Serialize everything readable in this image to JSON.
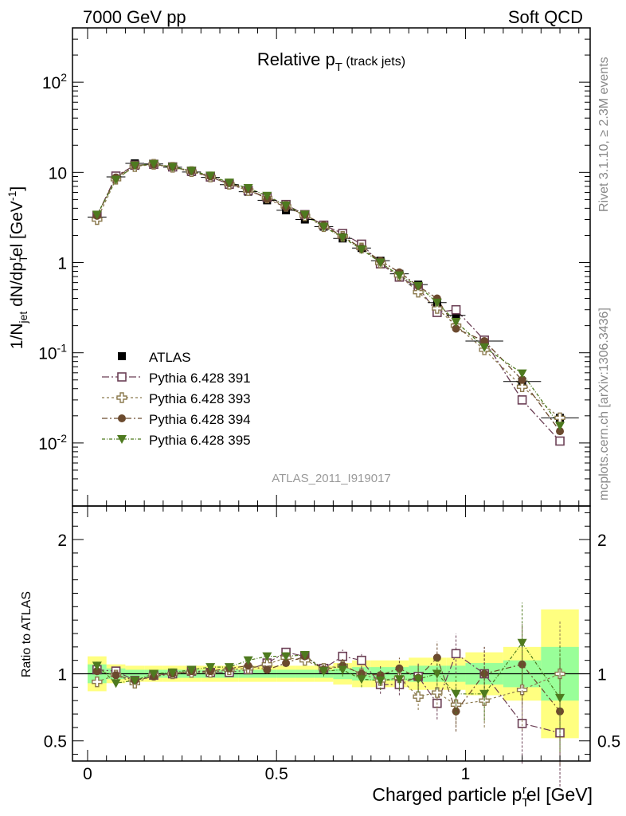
{
  "header": {
    "left": "7000 GeV pp",
    "right": "Soft QCD"
  },
  "side_labels": {
    "rivet": "Rivet 3.1.10, ≥ 2.3M events",
    "mcplots": "mcplots.cern.ch [arXiv:1306.3436]"
  },
  "watermark": "ATLAS_2011_I919017",
  "colors": {
    "atlas": "#000000",
    "p391": "#6b3f55",
    "p393": "#8c7a4f",
    "p394": "#6b4a2e",
    "p395": "#4e7a1f",
    "band_green": "#99ff99",
    "band_yellow": "#ffff80"
  },
  "chart_data": [
    {
      "type": "scatter",
      "title_main": "Relative p",
      "title_sub": "T",
      "title_suffix": " (track jets)",
      "ylabel_parts": [
        "1/N",
        "jet",
        " dN/dp",
        "T",
        "r",
        "el [GeV",
        "-1",
        "]"
      ],
      "yscale": "log",
      "ylim": [
        0.002,
        400
      ],
      "xlim": [
        -0.04,
        1.33
      ],
      "yticks": [
        {
          "value": 0.01,
          "base": "10",
          "exp": "-2"
        },
        {
          "value": 0.1,
          "base": "10",
          "exp": "-1"
        },
        {
          "value": 1,
          "base": "1",
          "exp": ""
        },
        {
          "value": 10,
          "base": "10",
          "exp": ""
        },
        {
          "value": 100,
          "base": "10",
          "exp": "2"
        }
      ],
      "x": [
        0.025,
        0.075,
        0.125,
        0.175,
        0.225,
        0.275,
        0.325,
        0.375,
        0.425,
        0.475,
        0.525,
        0.575,
        0.625,
        0.675,
        0.725,
        0.775,
        0.825,
        0.875,
        0.925,
        0.975,
        1.05,
        1.15,
        1.25
      ],
      "xerr": [
        0.025,
        0.025,
        0.025,
        0.025,
        0.025,
        0.025,
        0.025,
        0.025,
        0.025,
        0.025,
        0.025,
        0.025,
        0.025,
        0.025,
        0.025,
        0.025,
        0.025,
        0.025,
        0.025,
        0.025,
        0.05,
        0.05,
        0.05
      ],
      "series": [
        {
          "name": "ATLAS",
          "key": "atlas",
          "marker": "filled-square",
          "line": false,
          "values": [
            3.2,
            8.9,
            12.6,
            12.4,
            11.4,
            10.1,
            8.8,
            7.3,
            6.1,
            4.9,
            3.8,
            3.0,
            2.5,
            1.85,
            1.45,
            1.05,
            0.75,
            0.57,
            0.36,
            0.26,
            0.135,
            0.048,
            0.019
          ]
        },
        {
          "name": "Pythia 6.428 391",
          "key": "p391",
          "marker": "open-square",
          "line": true,
          "values": [
            3.3,
            9.1,
            12.0,
            12.3,
            11.5,
            10.3,
            8.9,
            7.4,
            6.3,
            5.3,
            4.4,
            3.4,
            2.6,
            2.1,
            1.6,
            0.97,
            0.69,
            0.53,
            0.28,
            0.3,
            0.138,
            0.03,
            0.0105
          ]
        },
        {
          "name": "Pythia 6.428 393",
          "key": "p393",
          "marker": "open-cross",
          "line": true,
          "values": [
            3.0,
            8.4,
            11.6,
            12.3,
            11.4,
            10.2,
            8.9,
            7.4,
            6.3,
            5.2,
            4.2,
            3.3,
            2.5,
            1.95,
            1.45,
            0.99,
            0.72,
            0.47,
            0.31,
            0.2,
            0.108,
            0.042,
            0.019
          ]
        },
        {
          "name": "Pythia 6.428 394",
          "key": "p394",
          "marker": "filled-circle",
          "line": true,
          "values": [
            3.3,
            8.8,
            12.0,
            12.2,
            11.5,
            10.3,
            9.0,
            7.6,
            6.5,
            5.1,
            4.1,
            3.4,
            2.6,
            1.95,
            1.45,
            1.05,
            0.78,
            0.55,
            0.4,
            0.185,
            0.135,
            0.05,
            0.0135
          ]
        },
        {
          "name": "Pythia 6.428 395",
          "key": "p395",
          "marker": "filled-triangle-down",
          "line": true,
          "values": [
            3.4,
            8.3,
            11.9,
            12.4,
            11.5,
            10.4,
            9.2,
            7.7,
            6.7,
            5.5,
            4.3,
            3.4,
            2.5,
            1.9,
            1.4,
            1.0,
            0.72,
            0.55,
            0.36,
            0.22,
            0.115,
            0.059,
            0.0155
          ]
        }
      ]
    },
    {
      "type": "scatter",
      "ylabel": "Ratio to ATLAS",
      "xlabel_parts": [
        "Charged particle p",
        "T",
        "r",
        "el [GeV]"
      ],
      "ylim": [
        0.35,
        2.25
      ],
      "xlim": [
        -0.04,
        1.33
      ],
      "yticks": [
        0.5,
        1,
        2
      ],
      "xticks": [
        {
          "value": 0,
          "label": "0"
        },
        {
          "value": 0.5,
          "label": "0.5"
        },
        {
          "value": 1,
          "label": "1"
        }
      ],
      "band": {
        "x_low": [
          0.0,
          0.05,
          0.1,
          0.15,
          0.2,
          0.25,
          0.3,
          0.35,
          0.4,
          0.45,
          0.5,
          0.55,
          0.6,
          0.65,
          0.7,
          0.75,
          0.8,
          0.85,
          0.9,
          0.95,
          1.0,
          1.1,
          1.2
        ],
        "x_high": [
          0.05,
          0.1,
          0.15,
          0.2,
          0.25,
          0.3,
          0.35,
          0.4,
          0.45,
          0.5,
          0.55,
          0.6,
          0.65,
          0.7,
          0.75,
          0.8,
          0.85,
          0.9,
          0.95,
          1.0,
          1.1,
          1.2,
          1.3
        ],
        "green": [
          0.07,
          0.04,
          0.03,
          0.03,
          0.03,
          0.03,
          0.03,
          0.03,
          0.03,
          0.03,
          0.03,
          0.03,
          0.03,
          0.04,
          0.05,
          0.05,
          0.05,
          0.06,
          0.06,
          0.06,
          0.08,
          0.1,
          0.2
        ],
        "yellow": [
          0.13,
          0.07,
          0.06,
          0.06,
          0.06,
          0.06,
          0.06,
          0.06,
          0.06,
          0.06,
          0.06,
          0.06,
          0.06,
          0.08,
          0.1,
          0.1,
          0.1,
          0.12,
          0.12,
          0.12,
          0.16,
          0.2,
          0.48
        ]
      },
      "series": [
        {
          "name": "Pythia 6.428 391",
          "key": "p391",
          "marker": "open-square",
          "values": [
            1.03,
            1.02,
            0.95,
            0.99,
            1.0,
            1.02,
            1.01,
            1.01,
            1.03,
            1.08,
            1.16,
            1.13,
            1.04,
            1.13,
            1.1,
            0.92,
            0.92,
            0.98,
            0.78,
            1.15,
            1.0,
            0.63,
            0.56
          ],
          "err": [
            0.03,
            0.02,
            0.02,
            0.02,
            0.02,
            0.02,
            0.02,
            0.02,
            0.03,
            0.03,
            0.03,
            0.03,
            0.04,
            0.05,
            0.06,
            0.07,
            0.08,
            0.1,
            0.12,
            0.15,
            0.2,
            0.3,
            0.4
          ]
        },
        {
          "name": "Pythia 6.428 393",
          "key": "p393",
          "marker": "open-cross",
          "values": [
            0.94,
            0.99,
            0.93,
            0.99,
            1.0,
            1.01,
            1.01,
            1.03,
            1.04,
            1.07,
            1.12,
            1.1,
            1.04,
            1.06,
            1.0,
            0.95,
            0.97,
            0.83,
            0.86,
            0.77,
            0.8,
            0.88,
            1.0
          ],
          "err": [
            0.03,
            0.02,
            0.02,
            0.02,
            0.02,
            0.02,
            0.02,
            0.02,
            0.03,
            0.03,
            0.03,
            0.03,
            0.04,
            0.05,
            0.06,
            0.07,
            0.08,
            0.1,
            0.12,
            0.15,
            0.2,
            0.3,
            0.4
          ]
        },
        {
          "name": "Pythia 6.428 394",
          "key": "p394",
          "marker": "filled-circle",
          "values": [
            1.02,
            0.99,
            0.95,
            0.98,
            1.0,
            1.02,
            1.02,
            1.04,
            1.06,
            1.03,
            1.08,
            1.13,
            1.03,
            1.06,
            1.0,
            0.99,
            1.04,
            0.97,
            1.12,
            0.72,
            1.0,
            1.07,
            0.72
          ],
          "err": [
            0.03,
            0.02,
            0.02,
            0.02,
            0.02,
            0.02,
            0.02,
            0.02,
            0.03,
            0.03,
            0.03,
            0.03,
            0.04,
            0.05,
            0.06,
            0.07,
            0.08,
            0.1,
            0.12,
            0.15,
            0.2,
            0.3,
            0.4
          ]
        },
        {
          "name": "Pythia 6.428 395",
          "key": "p395",
          "marker": "filled-triangle-down",
          "values": [
            1.06,
            0.93,
            0.95,
            1.0,
            1.01,
            1.03,
            1.05,
            1.05,
            1.1,
            1.13,
            1.13,
            1.14,
            1.02,
            1.03,
            0.96,
            0.95,
            0.96,
            0.96,
            1.0,
            0.85,
            0.85,
            1.23,
            0.82
          ],
          "err": [
            0.03,
            0.02,
            0.02,
            0.02,
            0.02,
            0.02,
            0.02,
            0.02,
            0.03,
            0.03,
            0.03,
            0.03,
            0.04,
            0.05,
            0.06,
            0.07,
            0.08,
            0.1,
            0.12,
            0.15,
            0.2,
            0.3,
            0.4
          ]
        }
      ]
    }
  ]
}
